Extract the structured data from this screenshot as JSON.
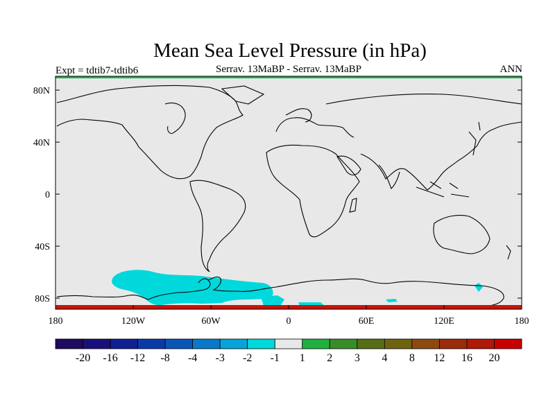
{
  "title": "Mean Sea Level Pressure (in hPa)",
  "left_label": "Expt = tdtib7-tdtib6",
  "center_label": "Serrav.   13MaBP - Serrav.   13MaBP",
  "right_label": "ANN",
  "y_ticks": [
    "80N",
    "40N",
    "0",
    "40S",
    "80S"
  ],
  "x_ticks": [
    "180",
    "120W",
    "60W",
    "0",
    "60E",
    "120E",
    "180"
  ],
  "colors": {
    "background_field": "#e8e8e8",
    "negative_anomaly": "#00d8dc",
    "coastline": "#000000",
    "top_strip": "#22b14c",
    "bottom_strip": "#c81400"
  },
  "colorbar": {
    "colors": [
      "#1e0a5e",
      "#18107a",
      "#102090",
      "#0a3aa8",
      "#0a56b8",
      "#0a78c8",
      "#06a4d8",
      "#00d8dc",
      "#e8e8e8",
      "#20b040",
      "#3a8c28",
      "#566e18",
      "#6e6410",
      "#8c4a10",
      "#9a2c0c",
      "#b01808",
      "#c80000"
    ],
    "labels": [
      "-20",
      "-16",
      "-12",
      "-8",
      "-4",
      "-3",
      "-2",
      "-1",
      "1",
      "2",
      "3",
      "4",
      "8",
      "12",
      "16",
      "20"
    ]
  }
}
